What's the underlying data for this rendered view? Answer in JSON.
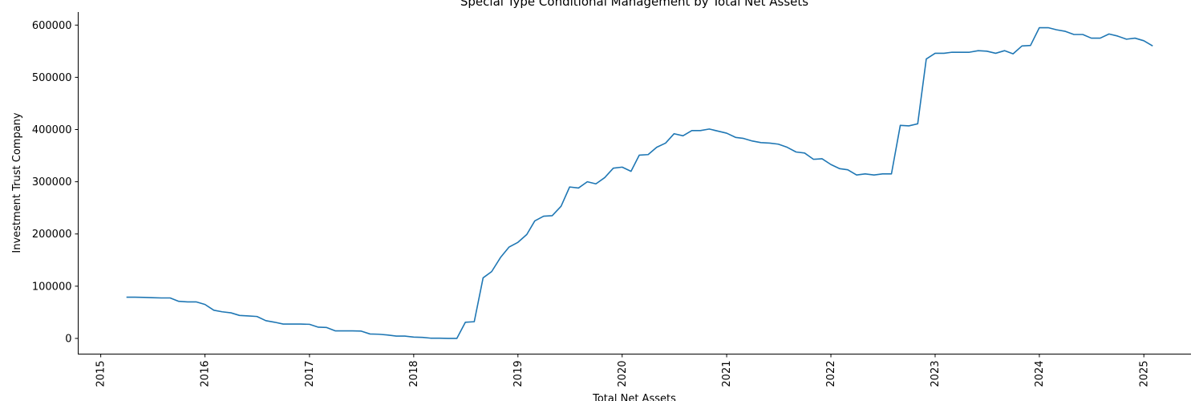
{
  "chart_data": {
    "type": "line",
    "title": "Special Type Conditional Management by Total Net Assets",
    "xlabel": "Total Net Assets",
    "ylabel": "Investment Trust Company",
    "x_tick_labels": [
      "2015",
      "2016",
      "2017",
      "2018",
      "2019",
      "2020",
      "2021",
      "2022",
      "2023",
      "2024",
      "2025"
    ],
    "y_tick_labels": [
      "0",
      "100000",
      "200000",
      "300000",
      "400000",
      "500000",
      "600000"
    ],
    "xlim": [
      "2014-10-14",
      "2025-06-15"
    ],
    "ylim": [
      -30000,
      625000
    ],
    "grid": false,
    "line_color": "#1f77b4",
    "series": [
      {
        "x": [
          "2015-04-01",
          "2015-05-01",
          "2015-06-01",
          "2015-07-01",
          "2015-08-01",
          "2015-09-01",
          "2015-10-01",
          "2015-11-01",
          "2015-12-01",
          "2016-01-01",
          "2016-02-01",
          "2016-03-01",
          "2016-04-01",
          "2016-05-01",
          "2016-06-01",
          "2016-07-01",
          "2016-08-01",
          "2016-09-01",
          "2016-10-01",
          "2016-11-01",
          "2016-12-01",
          "2017-01-01",
          "2017-02-01",
          "2017-03-01",
          "2017-04-01",
          "2017-05-01",
          "2017-06-01",
          "2017-07-01",
          "2017-08-01",
          "2017-09-01",
          "2017-10-01",
          "2017-11-01",
          "2017-12-01",
          "2018-01-01",
          "2018-02-01",
          "2018-03-01",
          "2018-04-01",
          "2018-05-01",
          "2018-06-01",
          "2018-07-01",
          "2018-08-01",
          "2018-09-01",
          "2018-10-01",
          "2018-11-01",
          "2018-12-01",
          "2019-01-01",
          "2019-02-01",
          "2019-03-01",
          "2019-04-01",
          "2019-05-01",
          "2019-06-01",
          "2019-07-01",
          "2019-08-01",
          "2019-09-01",
          "2019-10-01",
          "2019-11-01",
          "2019-12-01",
          "2020-01-01",
          "2020-02-01",
          "2020-03-01",
          "2020-04-01",
          "2020-05-01",
          "2020-06-01",
          "2020-07-01",
          "2020-08-01",
          "2020-09-01",
          "2020-10-01",
          "2020-11-01",
          "2020-12-01",
          "2021-01-01",
          "2021-02-01",
          "2021-03-01",
          "2021-04-01",
          "2021-05-01",
          "2021-06-01",
          "2021-07-01",
          "2021-08-01",
          "2021-09-01",
          "2021-10-01",
          "2021-11-01",
          "2021-12-01",
          "2022-01-01",
          "2022-02-01",
          "2022-03-01",
          "2022-04-01",
          "2022-05-01",
          "2022-06-01",
          "2022-07-01",
          "2022-08-01",
          "2022-09-01",
          "2022-10-01",
          "2022-11-01",
          "2022-12-01",
          "2023-01-01",
          "2023-02-01",
          "2023-03-01",
          "2023-04-01",
          "2023-05-01",
          "2023-06-01",
          "2023-07-01",
          "2023-08-01",
          "2023-09-01",
          "2023-10-01",
          "2023-11-01",
          "2023-12-01",
          "2024-01-01",
          "2024-02-01",
          "2024-03-01",
          "2024-04-01",
          "2024-05-01",
          "2024-06-01",
          "2024-07-01",
          "2024-08-01",
          "2024-09-01",
          "2024-10-01",
          "2024-11-01",
          "2024-12-01",
          "2025-01-01",
          "2025-02-01"
        ],
        "values": [
          79000,
          79000,
          78500,
          78000,
          77500,
          77500,
          71000,
          70000,
          70000,
          65000,
          54000,
          51000,
          49000,
          44000,
          43000,
          42000,
          34000,
          31000,
          27500,
          27500,
          27500,
          27000,
          21500,
          21000,
          14500,
          14500,
          14500,
          14000,
          8500,
          8000,
          6500,
          4500,
          4500,
          2500,
          2000,
          500,
          500,
          0,
          0,
          31000,
          32000,
          116000,
          128000,
          155000,
          175000,
          184000,
          199000,
          225000,
          234000,
          235000,
          253000,
          290000,
          288000,
          300000,
          296000,
          308000,
          326000,
          328000,
          320000,
          351000,
          352000,
          366000,
          374000,
          392000,
          388000,
          398000,
          398000,
          401000,
          397000,
          393000,
          385000,
          383000,
          378000,
          375000,
          374000,
          372000,
          366000,
          357000,
          355000,
          343000,
          344000,
          333000,
          325000,
          323000,
          313000,
          315000,
          313000,
          315000,
          315000,
          408000,
          407000,
          411000,
          535000,
          546000,
          546000,
          548000,
          548000,
          548000,
          551000,
          550000,
          546000,
          551000,
          545000,
          560000,
          561000,
          595000,
          595000,
          591000,
          588000,
          582000,
          582000,
          575000,
          575000,
          583000,
          579000,
          573000,
          575000,
          570000,
          560000
        ]
      }
    ]
  }
}
